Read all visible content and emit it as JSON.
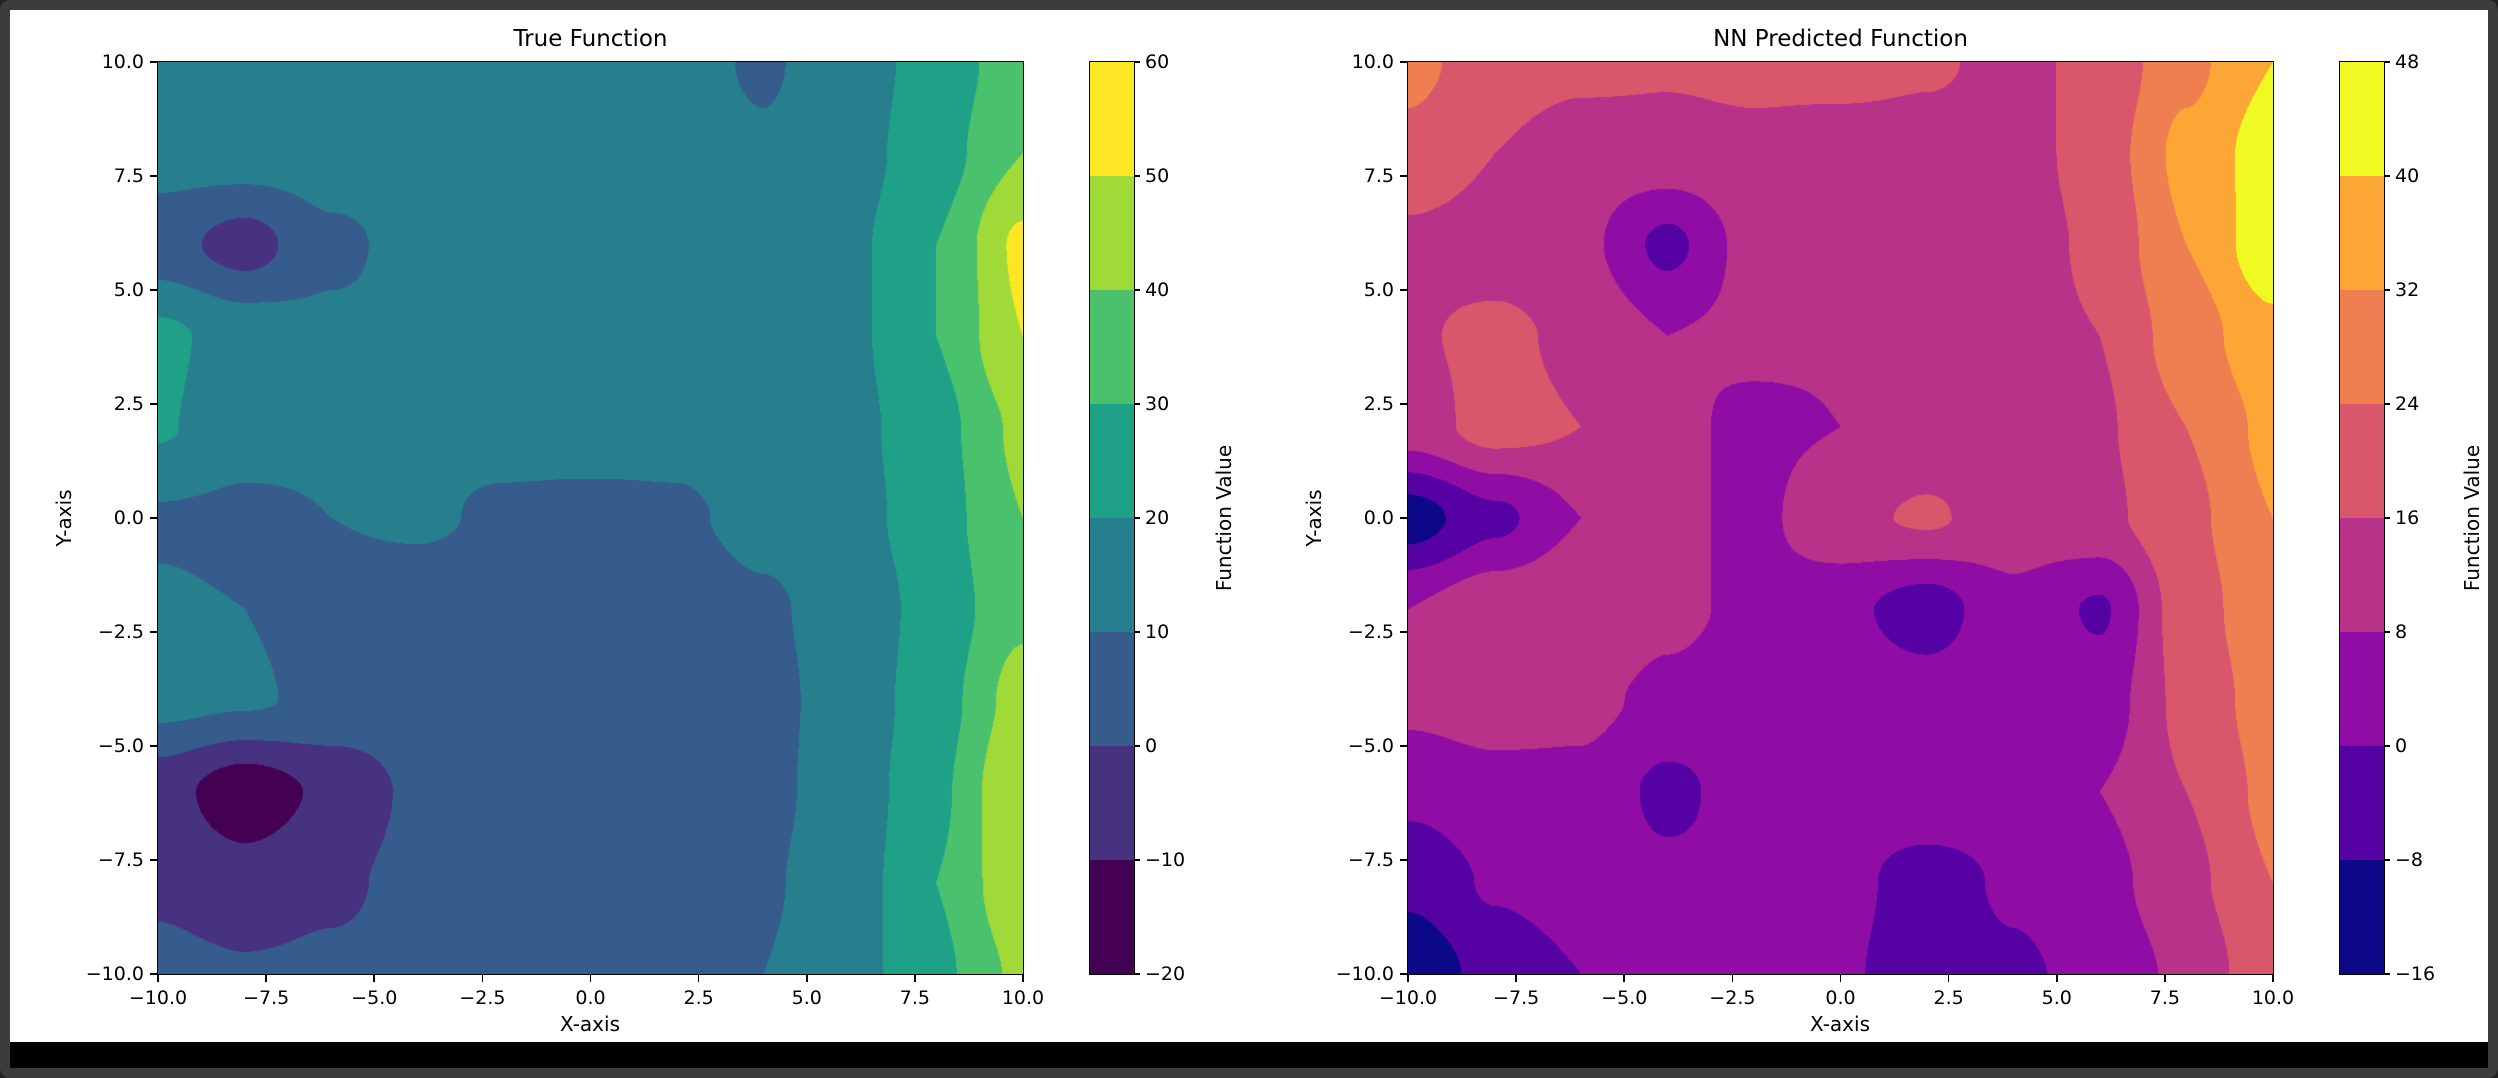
{
  "window": {
    "frame_color": "#3c3c3c",
    "bottom_bar_color": "#000000",
    "figure_background": "#ffffff"
  },
  "chart_data": [
    {
      "type": "heatmap",
      "title": "True Function",
      "xlabel": "X-axis",
      "ylabel": "Y-axis",
      "colorbar_label": "Function Value",
      "colormap": "viridis",
      "xlim": [
        -10,
        10
      ],
      "ylim": [
        -10,
        10
      ],
      "levels": [
        -20,
        -10,
        0,
        10,
        20,
        30,
        40,
        50,
        60
      ],
      "band_colors": [
        "#440154",
        "#46327e",
        "#365c8d",
        "#277f8e",
        "#1fa187",
        "#4ac16d",
        "#a0da39",
        "#fde725"
      ],
      "x": [
        -10,
        -8,
        -6,
        -4,
        -2,
        0,
        2,
        4,
        6,
        8,
        10
      ],
      "y_top_to_bottom": [
        10,
        8,
        6,
        4,
        2,
        0,
        -2,
        -4,
        -6,
        -8,
        -10
      ],
      "z": [
        [
          15,
          15,
          16,
          15,
          14,
          15,
          13,
          9,
          15,
          24,
          36
        ],
        [
          14,
          15,
          15,
          14,
          14,
          15,
          14,
          11,
          16,
          26,
          40
        ],
        [
          4,
          -4,
          8,
          13,
          14,
          15,
          14,
          16,
          18,
          30,
          52
        ],
        [
          22,
          16,
          12,
          12,
          13,
          14,
          13,
          15,
          18,
          30,
          50
        ],
        [
          21,
          14,
          12,
          11,
          12,
          13,
          12,
          14,
          17,
          27,
          42
        ],
        [
          9,
          8,
          10,
          11,
          9,
          8,
          9,
          12,
          16,
          26,
          40
        ],
        [
          11,
          10,
          7,
          6,
          5,
          5,
          6,
          9,
          13,
          24,
          38
        ],
        [
          13,
          11,
          8,
          6,
          5,
          4,
          6,
          8,
          13,
          26,
          44
        ],
        [
          -6,
          -16,
          -8,
          2,
          4,
          5,
          6,
          8,
          14,
          28,
          50
        ],
        [
          -2,
          -6,
          -2,
          3,
          5,
          6,
          7,
          9,
          15,
          30,
          48
        ],
        [
          3,
          1,
          2,
          4,
          6,
          7,
          8,
          10,
          16,
          28,
          42
        ]
      ],
      "xtick_labels": [
        "−10.0",
        "−7.5",
        "−5.0",
        "−2.5",
        "0.0",
        "2.5",
        "5.0",
        "7.5",
        "10.0"
      ],
      "ytick_labels": [
        "10.0",
        "7.5",
        "5.0",
        "2.5",
        "0.0",
        "−2.5",
        "−5.0",
        "−7.5",
        "−10.0"
      ],
      "colorbar_tick_labels": [
        "60",
        "50",
        "40",
        "30",
        "20",
        "10",
        "0",
        "−10",
        "−20"
      ]
    },
    {
      "type": "heatmap",
      "title": "NN Predicted Function",
      "xlabel": "X-axis",
      "ylabel": "Y-axis",
      "colorbar_label": "Function Value",
      "colormap": "plasma",
      "xlim": [
        -10,
        10
      ],
      "ylim": [
        -10,
        10
      ],
      "levels": [
        -16,
        -8,
        0,
        8,
        16,
        24,
        32,
        40,
        48
      ],
      "band_colors": [
        "#0d0887",
        "#5601a4",
        "#8f0da4",
        "#b83289",
        "#d8576b",
        "#ef7e50",
        "#fca636",
        "#f0f921"
      ],
      "x": [
        -10,
        -8,
        -6,
        -4,
        -2,
        0,
        2,
        4,
        6,
        8,
        10
      ],
      "y_top_to_bottom": [
        10,
        8,
        6,
        4,
        2,
        0,
        -2,
        -4,
        -6,
        -8,
        -10
      ],
      "z": [
        [
          26,
          20,
          18,
          17,
          18,
          19,
          17,
          14,
          18,
          30,
          40
        ],
        [
          22,
          16,
          12,
          13,
          14,
          12,
          13,
          12,
          20,
          34,
          44
        ],
        [
          14,
          12,
          10,
          -2,
          11,
          10,
          12,
          11,
          18,
          32,
          45
        ],
        [
          15,
          18,
          14,
          8,
          10,
          9,
          10,
          12,
          16,
          28,
          38
        ],
        [
          12,
          19,
          16,
          10,
          6,
          8,
          11,
          13,
          15,
          24,
          34
        ],
        [
          -12,
          -2,
          8,
          10,
          6,
          14,
          17,
          12,
          14,
          22,
          32
        ],
        [
          8,
          14,
          16,
          10,
          6,
          2,
          -4,
          6,
          -1,
          20,
          30
        ],
        [
          10,
          12,
          10,
          6,
          3,
          5,
          4,
          6,
          4,
          18,
          28
        ],
        [
          2,
          5,
          6,
          -2,
          4,
          3,
          5,
          3,
          8,
          16,
          26
        ],
        [
          -6,
          1,
          4,
          2,
          1,
          2,
          -3,
          1,
          5,
          14,
          24
        ],
        [
          -14,
          -5,
          0,
          1,
          0,
          1,
          -4,
          -1,
          2,
          10,
          22
        ]
      ],
      "xtick_labels": [
        "−10.0",
        "−7.5",
        "−5.0",
        "−2.5",
        "0.0",
        "2.5",
        "5.0",
        "7.5",
        "10.0"
      ],
      "ytick_labels": [
        "10.0",
        "7.5",
        "5.0",
        "2.5",
        "0.0",
        "−2.5",
        "−5.0",
        "−7.5",
        "−10.0"
      ],
      "colorbar_tick_labels": [
        "48",
        "40",
        "32",
        "24",
        "16",
        "8",
        "0",
        "−8",
        "−16"
      ]
    }
  ]
}
